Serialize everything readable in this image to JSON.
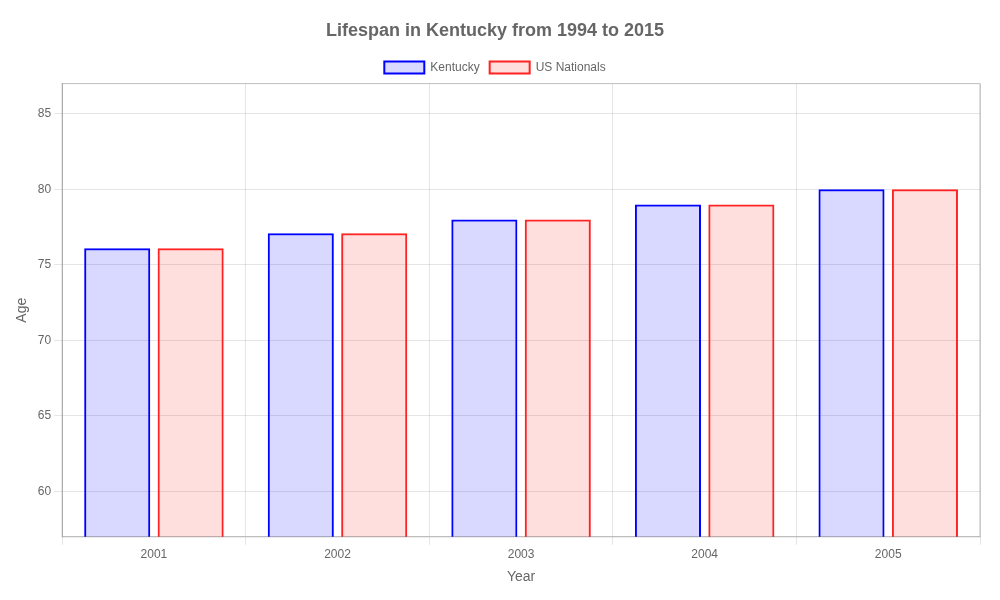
{
  "chart_data": {
    "type": "bar",
    "title": "Lifespan in Kentucky from 1994 to 2015",
    "x_label": "Year",
    "y_label": "Age",
    "categories": [
      "2001",
      "2002",
      "2003",
      "2004",
      "2005"
    ],
    "series": [
      {
        "name": "Kentucky",
        "color": "#0000ff",
        "values": [
          76.1,
          77.1,
          78.0,
          79.0,
          80.0
        ]
      },
      {
        "name": "US Nationals",
        "color": "#ff2222",
        "values": [
          76.1,
          77.1,
          78.0,
          79.0,
          80.0
        ]
      }
    ],
    "ylim": [
      57,
      87
    ],
    "yticks": [
      60,
      65,
      70,
      75,
      80,
      85
    ],
    "grid": true,
    "legend": "top"
  }
}
